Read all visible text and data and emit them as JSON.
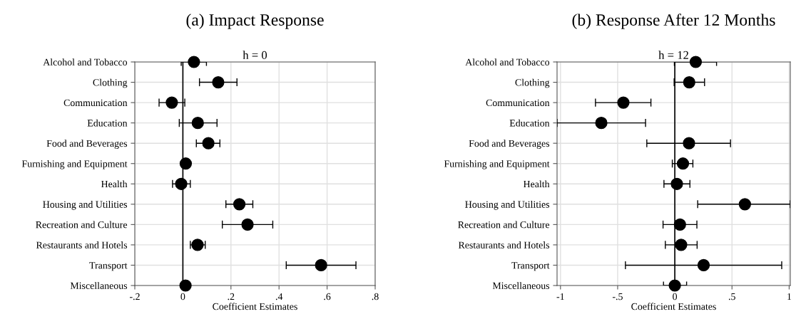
{
  "chart_data": [
    {
      "type": "scatter",
      "title": "(a) Impact Response",
      "subtitle": "h = 0",
      "xlabel": "Coefficient Estimates",
      "orientation": "horizontal",
      "categories": [
        "Alcohol and Tobacco",
        "Clothing",
        "Communication",
        "Education",
        "Food and Beverages",
        "Furnishing and Equipment",
        "Health",
        "Housing and Utilities",
        "Recreation and Culture",
        "Restaurants and Hotels",
        "Transport",
        "Miscellaneous"
      ],
      "values": [
        0.046,
        0.147,
        -0.046,
        0.062,
        0.106,
        0.012,
        -0.007,
        0.235,
        0.269,
        0.061,
        0.575,
        0.011
      ],
      "errors": [
        [
          -0.007,
          0.098
        ],
        [
          0.069,
          0.225
        ],
        [
          -0.099,
          0.008
        ],
        [
          -0.015,
          0.142
        ],
        [
          0.056,
          0.154
        ],
        null,
        [
          -0.043,
          0.031
        ],
        [
          0.179,
          0.291
        ],
        [
          0.164,
          0.374
        ],
        [
          0.031,
          0.093
        ],
        [
          0.43,
          0.72
        ],
        null
      ],
      "color": "#000000",
      "marker": "circle",
      "xlim": [
        -0.2,
        0.8
      ],
      "xticks": [
        {
          "value": -0.2,
          "label": "-.2"
        },
        0,
        {
          "value": 0.2,
          "label": ".2"
        },
        {
          "value": 0.4,
          "label": ".4"
        },
        {
          "value": 0.6,
          "label": ".6"
        },
        {
          "value": 0.8,
          "label": ".8"
        }
      ],
      "ref_lines": [
        {
          "axis": "x",
          "value": 0,
          "color": "#000000"
        }
      ],
      "grid": true
    },
    {
      "type": "scatter",
      "title": "(b) Response After 12 Months",
      "subtitle": "h = 12",
      "xlabel": "Coefficient Estimates",
      "orientation": "horizontal",
      "categories": [
        "Alcohol and Tobacco",
        "Clothing",
        "Communication",
        "Education",
        "Food and Beverages",
        "Furnishing and Equipment",
        "Health",
        "Housing and Utilities",
        "Recreation and Culture",
        "Restaurants and Hotels",
        "Transport",
        "Miscellaneous"
      ],
      "values": [
        0.183,
        0.126,
        -0.45,
        -0.643,
        0.124,
        0.071,
        0.018,
        0.613,
        0.045,
        0.055,
        0.252,
        0.0
      ],
      "errors": [
        [
          -0.004,
          0.365
        ],
        [
          -0.006,
          0.26
        ],
        [
          -0.694,
          -0.209
        ],
        [
          -1.03,
          -0.256
        ],
        [
          -0.245,
          0.487
        ],
        [
          -0.022,
          0.158
        ],
        [
          -0.095,
          0.132
        ],
        [
          0.2,
          1.01
        ],
        [
          -0.103,
          0.193
        ],
        [
          -0.083,
          0.195
        ],
        [
          -0.432,
          0.935
        ],
        [
          -0.099,
          0.103
        ]
      ],
      "color": "#000000",
      "marker": "circle",
      "xlim": [
        -1.03,
        1.01
      ],
      "xticks": [
        -1,
        {
          "value": -0.5,
          "label": "-.5"
        },
        0,
        {
          "value": 0.5,
          "label": ".5"
        },
        1
      ],
      "ref_lines": [
        {
          "axis": "x",
          "value": 0,
          "color": "#000000"
        }
      ],
      "grid": true
    }
  ]
}
